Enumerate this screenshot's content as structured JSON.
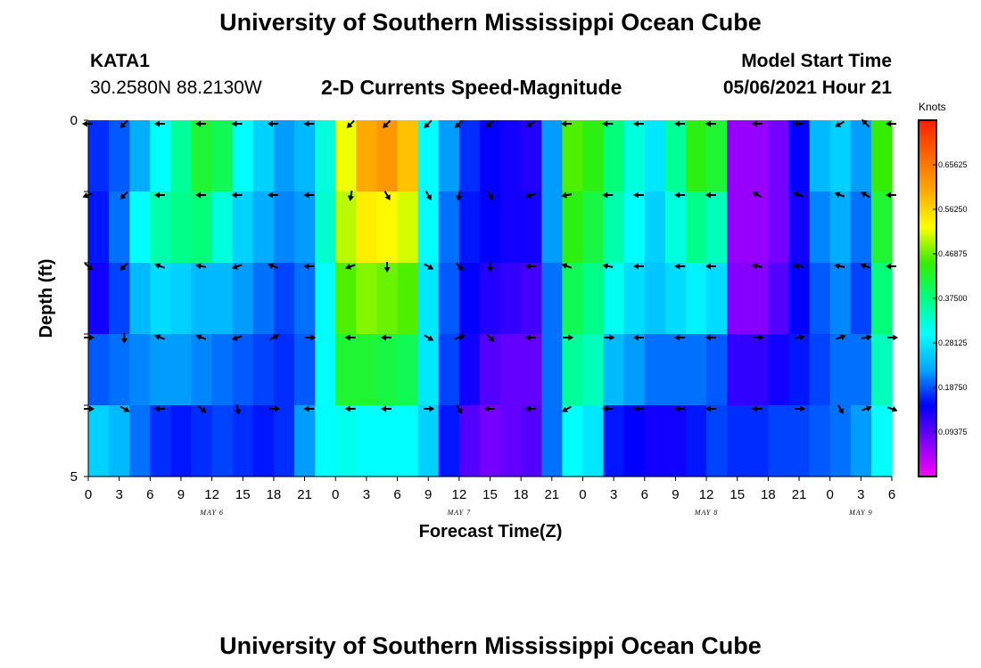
{
  "page": {
    "title_top": "University of Southern Mississippi Ocean Cube",
    "title_bottom": "University of Southern Mississippi Ocean Cube",
    "station_id": "KATA1",
    "station_coords": "30.2580N  88.2130W",
    "plot_title": "2-D Currents Speed-Magnitude",
    "model_start_label": "Model Start Time",
    "model_start_value": "05/06/2021 Hour 21"
  },
  "colors": {
    "scale": [
      "#ff00ff",
      "#7d00ff",
      "#0000ff",
      "#00a8ff",
      "#00ffff",
      "#00ff80",
      "#33ee00",
      "#ffff00",
      "#ffaa00",
      "#ff6600",
      "#ff1e00"
    ]
  },
  "chart_data": {
    "type": "heatmap",
    "title": "2-D Currents Speed-Magnitude",
    "xlabel": "Forecast Time(Z)",
    "ylabel": "Depth (ft)",
    "colorbar_label": "Knots",
    "x_hours": [
      0,
      3,
      6,
      9,
      12,
      15,
      18,
      21,
      24,
      27,
      30,
      33,
      36,
      39,
      42,
      45,
      48,
      51,
      54,
      57,
      60,
      63,
      66,
      69,
      72,
      75,
      78
    ],
    "x_tick_labels": [
      "0",
      "3",
      "6",
      "9",
      "12",
      "15",
      "18",
      "21",
      "0",
      "3",
      "6",
      "9",
      "12",
      "15",
      "18",
      "21",
      "0",
      "3",
      "6",
      "9",
      "12",
      "15",
      "18",
      "21",
      "0",
      "3",
      "6"
    ],
    "x_range": [
      0,
      78
    ],
    "day_labels": [
      {
        "label": "MAY 6",
        "hour": 12
      },
      {
        "label": "MAY 7",
        "hour": 36
      },
      {
        "label": "MAY 8",
        "hour": 60
      },
      {
        "label": "MAY 9",
        "hour": 75
      }
    ],
    "y_tick_labels": [
      {
        "label": "0",
        "depth": 0
      },
      {
        "label": "5",
        "depth": 5
      }
    ],
    "depth_range": [
      0,
      5
    ],
    "layers": 5,
    "speed_range": [
      0,
      0.75
    ],
    "colorbar_ticks": [
      "0.09375",
      "0.18750",
      "0.28125",
      "0.37500",
      "0.46875",
      "0.56250",
      "0.65625"
    ],
    "speed_knots": [
      [
        0.17,
        0.19,
        0.23,
        0.3,
        0.36,
        0.42,
        0.4,
        0.3,
        0.26,
        0.22,
        0.24,
        0.32,
        0.52,
        0.6,
        0.62,
        0.58,
        0.3,
        0.22,
        0.17,
        0.15,
        0.14,
        0.13,
        0.22,
        0.46,
        0.44,
        0.38,
        0.32,
        0.28,
        0.36,
        0.44,
        0.42,
        0.06,
        0.06,
        0.08,
        0.15,
        0.24,
        0.26,
        0.22,
        0.45
      ],
      [
        0.16,
        0.2,
        0.3,
        0.35,
        0.37,
        0.38,
        0.32,
        0.26,
        0.23,
        0.21,
        0.22,
        0.33,
        0.5,
        0.54,
        0.53,
        0.51,
        0.3,
        0.2,
        0.16,
        0.15,
        0.14,
        0.14,
        0.22,
        0.44,
        0.41,
        0.35,
        0.3,
        0.26,
        0.32,
        0.37,
        0.34,
        0.06,
        0.06,
        0.08,
        0.14,
        0.21,
        0.23,
        0.2,
        0.42
      ],
      [
        0.14,
        0.18,
        0.24,
        0.27,
        0.26,
        0.24,
        0.24,
        0.22,
        0.2,
        0.18,
        0.2,
        0.3,
        0.46,
        0.48,
        0.47,
        0.46,
        0.28,
        0.19,
        0.15,
        0.13,
        0.12,
        0.11,
        0.2,
        0.4,
        0.37,
        0.31,
        0.27,
        0.25,
        0.27,
        0.29,
        0.27,
        0.07,
        0.07,
        0.1,
        0.15,
        0.19,
        0.21,
        0.18,
        0.38
      ],
      [
        0.19,
        0.2,
        0.21,
        0.22,
        0.22,
        0.21,
        0.2,
        0.19,
        0.18,
        0.17,
        0.19,
        0.3,
        0.42,
        0.42,
        0.41,
        0.4,
        0.28,
        0.18,
        0.14,
        0.1,
        0.09,
        0.09,
        0.2,
        0.36,
        0.34,
        0.24,
        0.22,
        0.2,
        0.2,
        0.2,
        0.19,
        0.12,
        0.12,
        0.14,
        0.16,
        0.18,
        0.2,
        0.2,
        0.34
      ],
      [
        0.26,
        0.24,
        0.2,
        0.17,
        0.16,
        0.17,
        0.18,
        0.17,
        0.16,
        0.17,
        0.22,
        0.3,
        0.31,
        0.3,
        0.3,
        0.3,
        0.26,
        0.16,
        0.1,
        0.08,
        0.09,
        0.1,
        0.2,
        0.3,
        0.28,
        0.16,
        0.15,
        0.14,
        0.14,
        0.16,
        0.18,
        0.17,
        0.17,
        0.18,
        0.18,
        0.19,
        0.2,
        0.22,
        0.3
      ]
    ],
    "arrow_columns_hours": [
      0,
      3.5,
      7,
      11,
      14.5,
      18,
      21.5,
      25.5,
      29,
      33,
      36,
      39,
      43,
      46.5,
      50.5,
      53.5,
      57.5,
      60.5,
      65,
      69,
      73,
      75.5,
      78
    ],
    "arrow_directions_deg": [
      [
        180,
        225,
        180,
        180,
        180,
        180,
        180,
        225,
        225,
        225,
        225,
        225,
        210,
        180,
        180,
        180,
        180,
        180,
        180,
        180,
        210,
        135,
        180
      ],
      [
        200,
        225,
        180,
        180,
        180,
        180,
        180,
        260,
        300,
        300,
        260,
        300,
        200,
        190,
        180,
        180,
        180,
        180,
        150,
        160,
        160,
        150,
        180
      ],
      [
        320,
        225,
        160,
        170,
        200,
        160,
        180,
        200,
        270,
        330,
        310,
        270,
        180,
        160,
        170,
        180,
        180,
        180,
        170,
        170,
        170,
        160,
        180
      ],
      [
        0,
        270,
        160,
        160,
        200,
        30,
        0,
        180,
        180,
        330,
        20,
        315,
        180,
        0,
        0,
        180,
        180,
        180,
        0,
        10,
        20,
        10,
        0
      ],
      [
        0,
        330,
        180,
        320,
        280,
        0,
        180,
        180,
        180,
        0,
        300,
        180,
        180,
        210,
        180,
        180,
        180,
        180,
        180,
        0,
        300,
        20,
        340
      ]
    ]
  }
}
